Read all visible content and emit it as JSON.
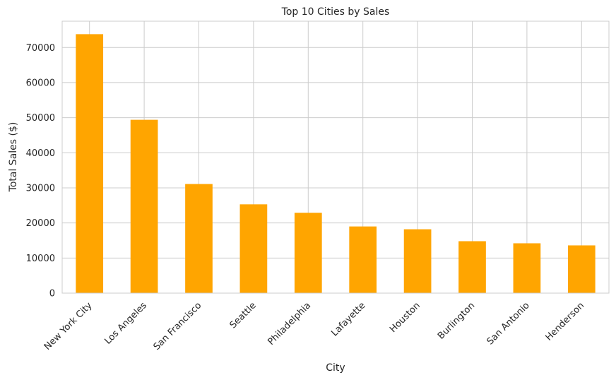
{
  "chart_data": {
    "type": "bar",
    "title": "Top 10 Cities by Sales",
    "xlabel": "City",
    "ylabel": "Total Sales ($)",
    "categories": [
      "New York City",
      "Los Angeles",
      "San Francisco",
      "Seattle",
      "Philadelphia",
      "Lafayette",
      "Houston",
      "Burlington",
      "San Antonio",
      "Henderson"
    ],
    "values": [
      73800,
      49400,
      31100,
      25300,
      22900,
      19000,
      18200,
      14800,
      14200,
      13600
    ],
    "yticks": [
      0,
      10000,
      20000,
      30000,
      40000,
      50000,
      60000,
      70000
    ],
    "ylim": [
      0,
      77500
    ],
    "grid": true,
    "bar_color": "#FFA500",
    "grid_color": "#CCCCCC",
    "text_color": "#262626"
  }
}
